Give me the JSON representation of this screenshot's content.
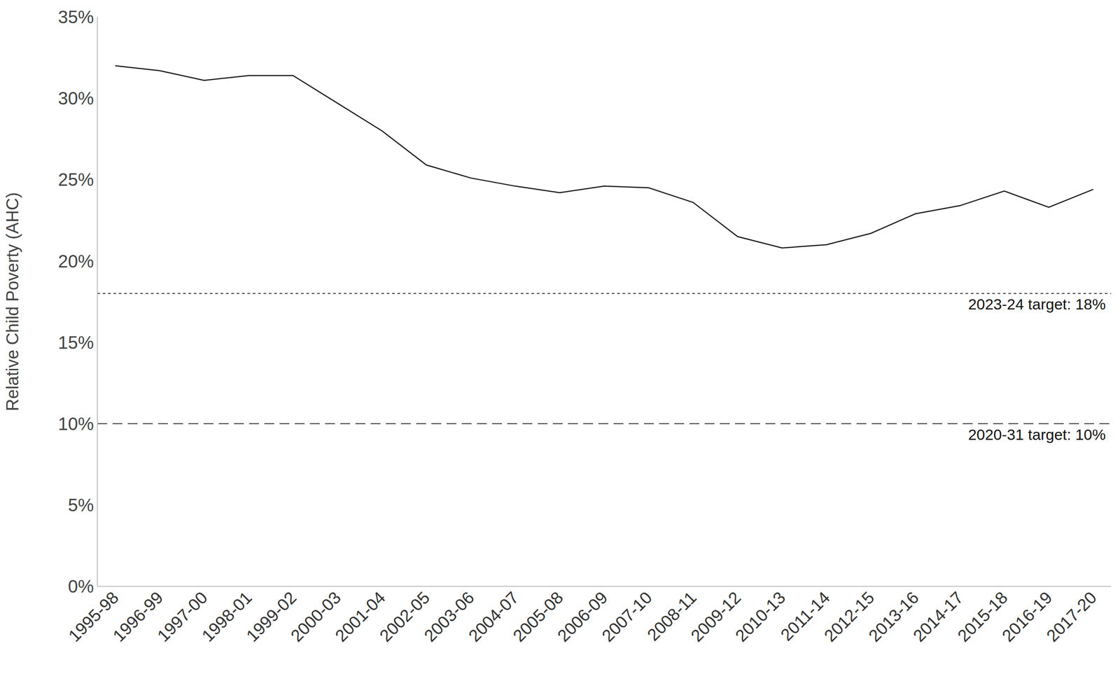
{
  "chart_data": {
    "type": "line",
    "y_label": "Relative Child Poverty (AHC)",
    "categories": [
      "1995-98",
      "1996-99",
      "1997-00",
      "1998-01",
      "1999-02",
      "2000-03",
      "2001-04",
      "2002-05",
      "2003-06",
      "2004-07",
      "2005-08",
      "2006-09",
      "2007-10",
      "2008-11",
      "2009-12",
      "2010-13",
      "2011-14",
      "2012-15",
      "2013-16",
      "2014-17",
      "2015-18",
      "2016-19",
      "2017-20"
    ],
    "values": [
      32.0,
      31.7,
      31.1,
      31.4,
      31.4,
      29.7,
      28.0,
      25.9,
      25.1,
      24.6,
      24.2,
      24.6,
      24.5,
      23.6,
      21.5,
      20.8,
      21.0,
      21.7,
      22.9,
      23.4,
      24.3,
      23.3,
      24.4
    ],
    "color": "#1a1a1a",
    "ylim": [
      0,
      35
    ],
    "yticks": [
      {
        "value": 0,
        "label": "0%"
      },
      {
        "value": 5,
        "label": "5%"
      },
      {
        "value": 10,
        "label": "10%"
      },
      {
        "value": 15,
        "label": "15%"
      },
      {
        "value": 20,
        "label": "20%"
      },
      {
        "value": 25,
        "label": "25%"
      },
      {
        "value": 30,
        "label": "30%"
      },
      {
        "value": 35,
        "label": "35%"
      }
    ],
    "annotations": [
      {
        "label": "2023-24 target: 18%",
        "value": 18,
        "line_style": "dotted"
      },
      {
        "label": "2020-31 target: 10%",
        "value": 10,
        "line_style": "dashed"
      }
    ],
    "grid": false
  }
}
